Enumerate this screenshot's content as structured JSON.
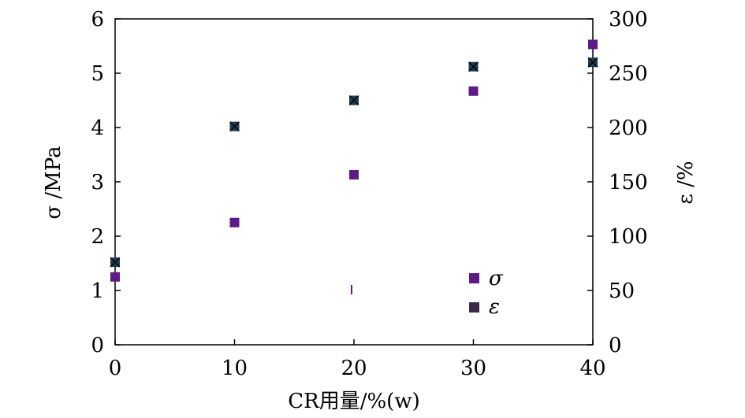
{
  "chart_data": {
    "type": "scatter",
    "title": "",
    "xlabel": "CR用量/%(w)",
    "ylabel": "σ /MPa",
    "y2label": "ε /%",
    "xlim": [
      0,
      40
    ],
    "ylim": [
      0,
      6
    ],
    "y2lim": [
      0,
      300
    ],
    "xticks": [
      "0",
      "10",
      "20",
      "30",
      "40"
    ],
    "yticks": [
      "0",
      "1",
      "2",
      "3",
      "4",
      "5",
      "6"
    ],
    "y2ticks": [
      "0",
      "50",
      "100",
      "150",
      "200",
      "250",
      "300"
    ],
    "grid": false,
    "legend_position": "bottom-right",
    "series": [
      {
        "name": "σ",
        "axis": "left",
        "marker": "square",
        "color": "#5b1a86",
        "x": [
          0,
          10,
          20,
          30,
          40
        ],
        "y": [
          1.25,
          2.25,
          3.13,
          4.67,
          5.53
        ]
      },
      {
        "name": "ε",
        "axis": "right",
        "marker": "square-x",
        "color": "#1e3a52",
        "x": [
          0,
          10,
          20,
          30,
          40
        ],
        "y": [
          76,
          201,
          225,
          256,
          260
        ]
      }
    ]
  }
}
